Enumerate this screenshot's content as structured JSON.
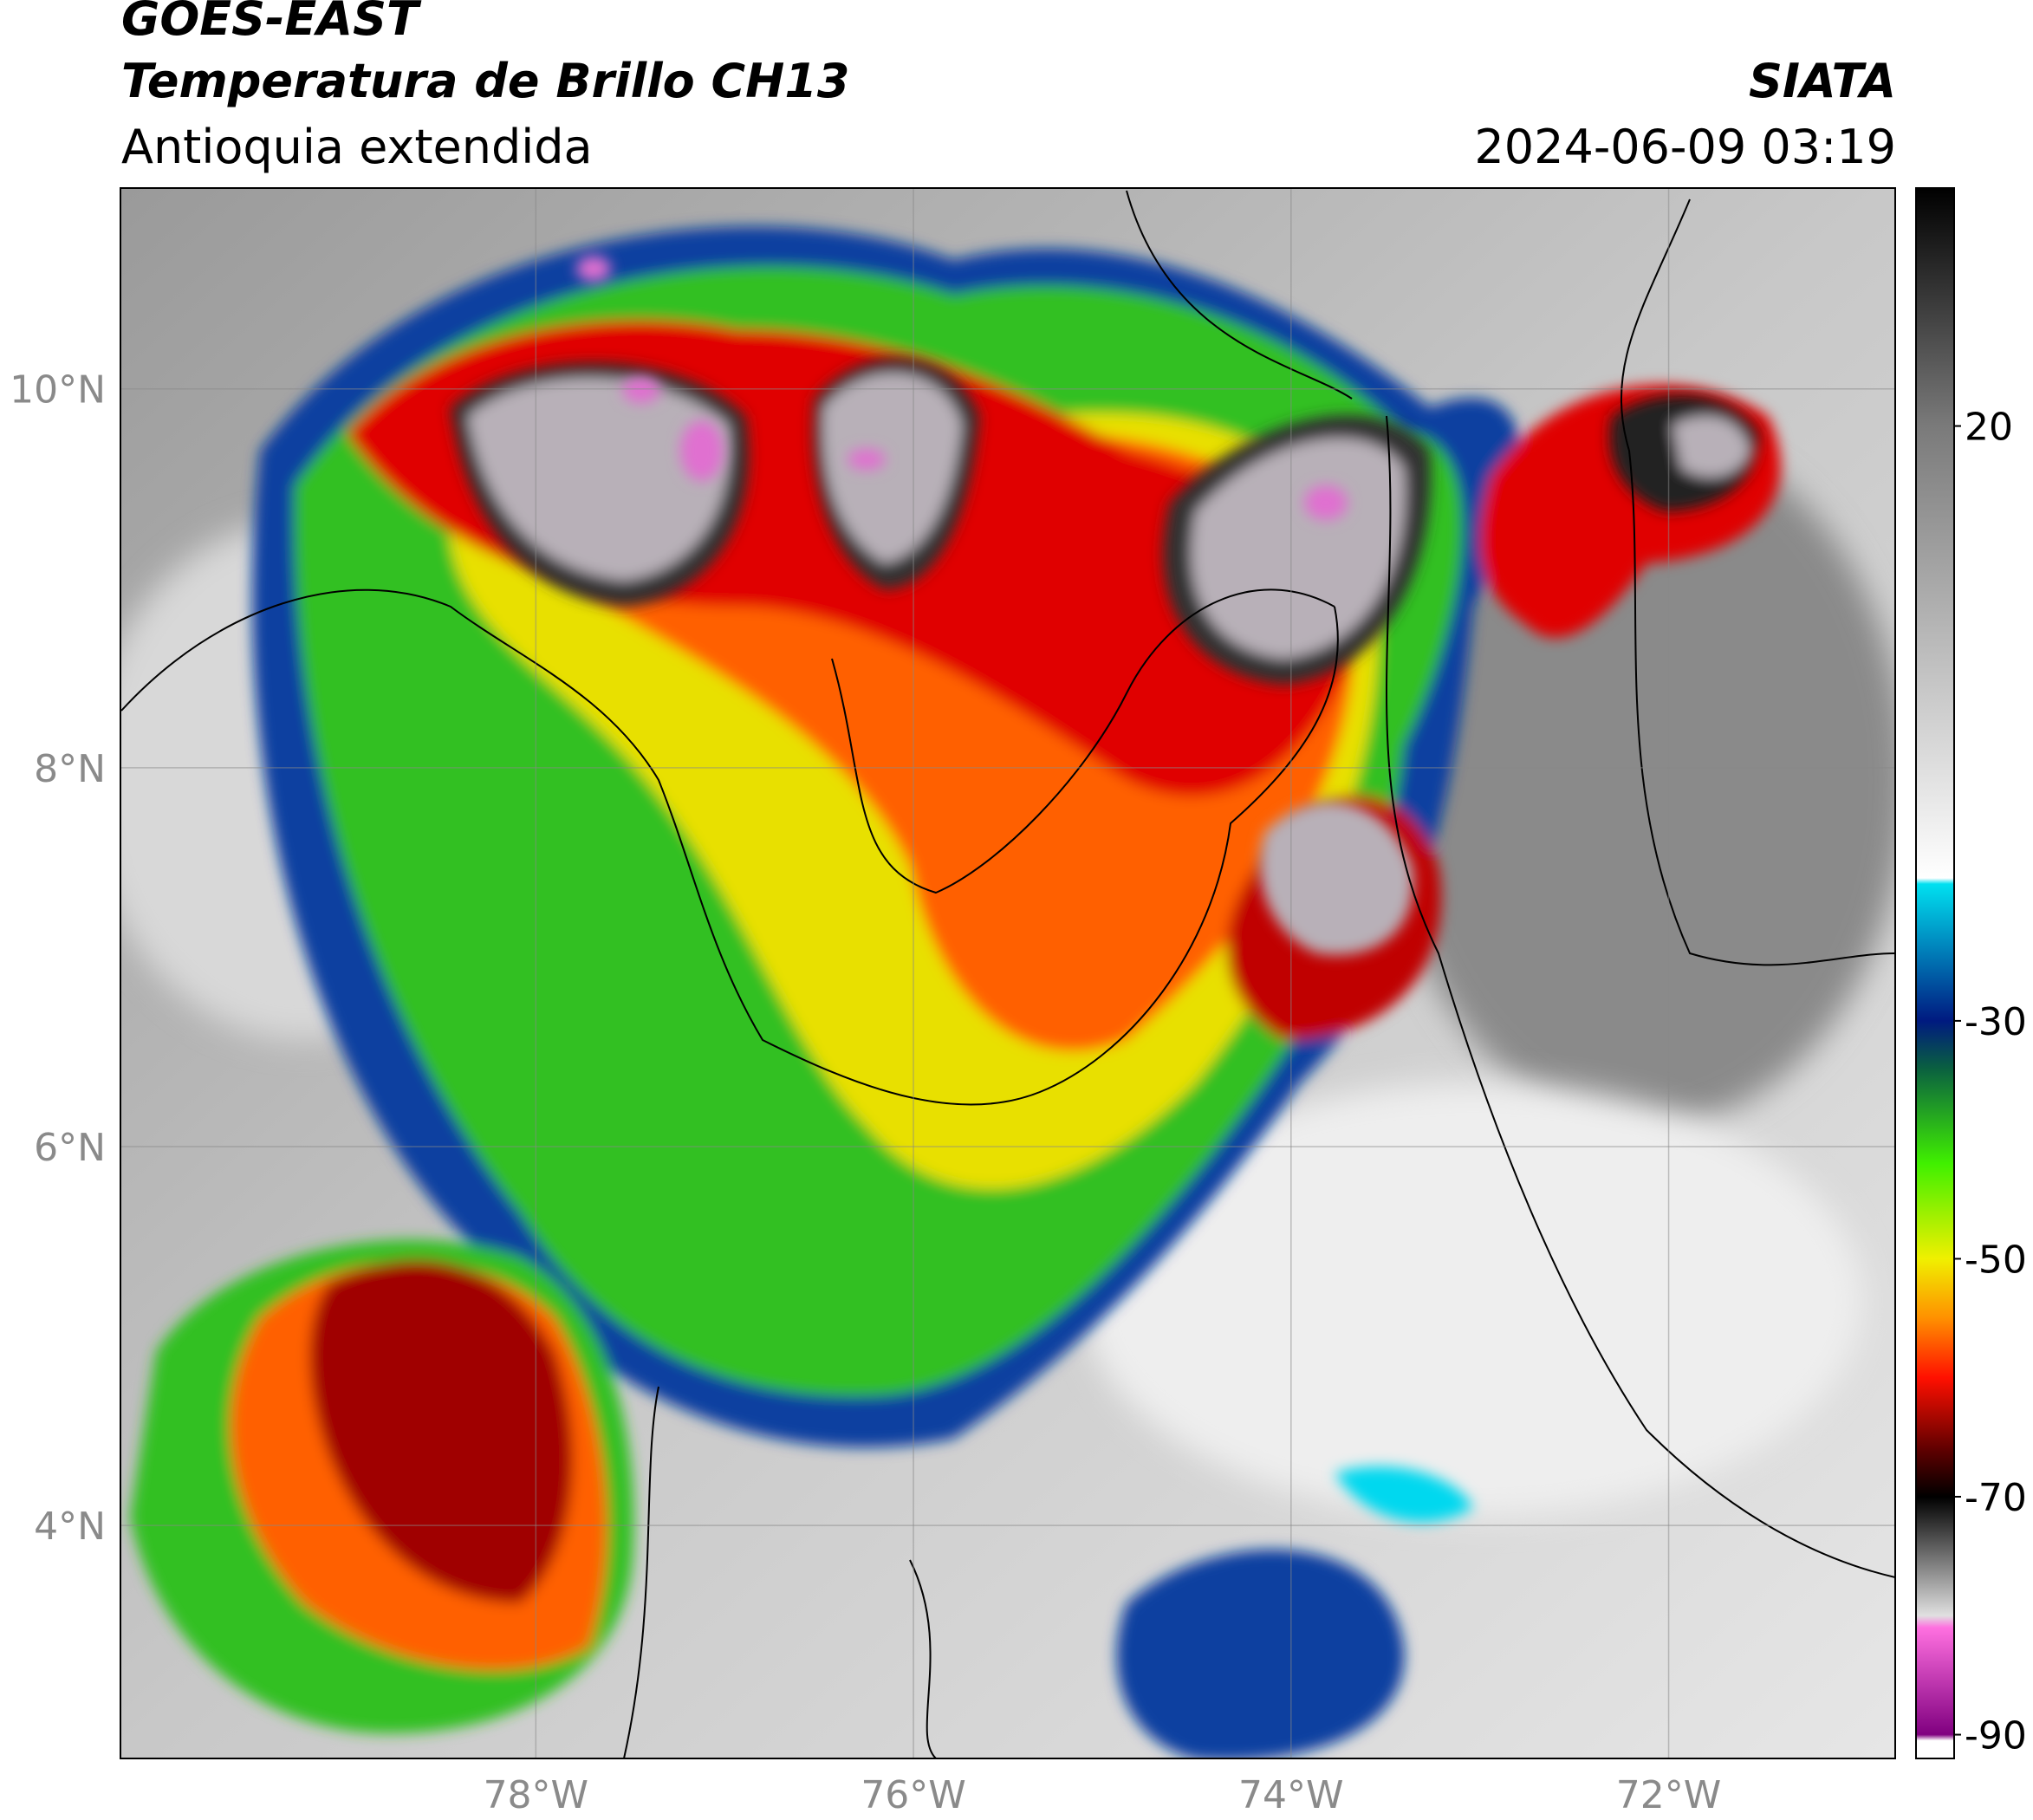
{
  "header": {
    "title": "GOES-EAST",
    "subtitle": "Temperatura de Brillo CH13",
    "region": "Antioquia extendida",
    "source": "SIATA",
    "datetime": "2024-06-09 03:19"
  },
  "map": {
    "lon_range": [
      -80.2,
      -70.8
    ],
    "lat_range": [
      2.77,
      11.06
    ],
    "lat_ticks": [
      {
        "value": 10,
        "label": "10°N"
      },
      {
        "value": 8,
        "label": "8°N"
      },
      {
        "value": 6,
        "label": "6°N"
      },
      {
        "value": 4,
        "label": "4°N"
      }
    ],
    "lon_ticks": [
      {
        "value": -78,
        "label": "78°W"
      },
      {
        "value": -76,
        "label": "76°W"
      },
      {
        "value": -74,
        "label": "74°W"
      },
      {
        "value": -72,
        "label": "72°W"
      }
    ],
    "grid": true
  },
  "colorbar": {
    "lim": [
      -92,
      40
    ],
    "ticks": [
      20,
      -30,
      -50,
      -70,
      -90
    ],
    "colormap": [
      {
        "value": 40,
        "color": "#000000"
      },
      {
        "value": 20,
        "color": "#7a7a7a"
      },
      {
        "value": -18,
        "color": "#ffffff"
      },
      {
        "value": -18.5,
        "color": "#00e0f0"
      },
      {
        "value": -30,
        "color": "#001a80"
      },
      {
        "value": -34,
        "color": "#0a6040"
      },
      {
        "value": -42,
        "color": "#40f000"
      },
      {
        "value": -50,
        "color": "#f0f000"
      },
      {
        "value": -55,
        "color": "#ff9000"
      },
      {
        "value": -60,
        "color": "#ff1000"
      },
      {
        "value": -66,
        "color": "#600000"
      },
      {
        "value": -70,
        "color": "#000000"
      },
      {
        "value": -80,
        "color": "#e0e0e0"
      },
      {
        "value": -81,
        "color": "#ff70e0"
      },
      {
        "value": -90,
        "color": "#800080"
      },
      {
        "value": -90.5,
        "color": "#ffffff"
      },
      {
        "value": -92,
        "color": "#ffffff"
      }
    ]
  }
}
